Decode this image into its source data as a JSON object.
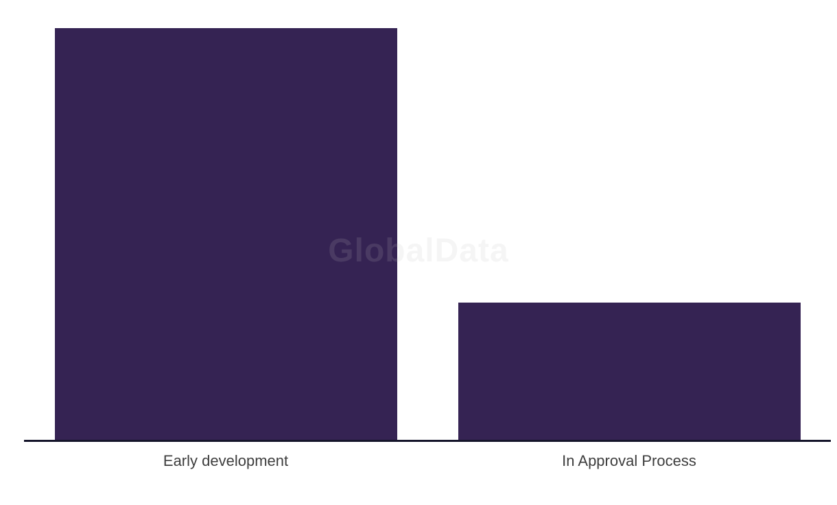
{
  "chart_data": {
    "type": "bar",
    "title": "",
    "xlabel": "",
    "ylabel": "",
    "categories": [
      "Early development",
      "In Approval Process"
    ],
    "values": [
      3,
      1
    ],
    "ylim": [
      0,
      3
    ],
    "grid": false,
    "legend_position": "none",
    "axis_labels_visible": false,
    "bar_color": "#352353",
    "axis_line_color": "#14142a",
    "label_color": "#3d3d3d",
    "watermark": {
      "text": "GlobalData",
      "color": "#c0c0c0",
      "opacity": 0.15
    }
  }
}
